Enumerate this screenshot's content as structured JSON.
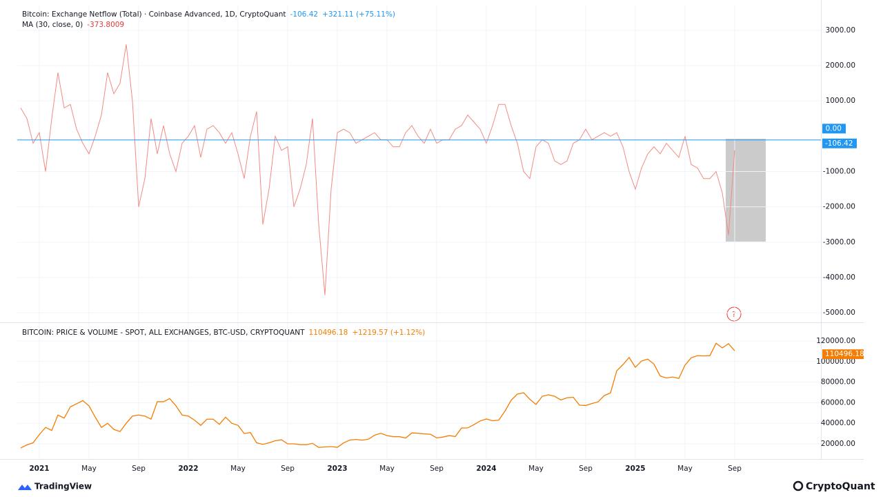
{
  "chart_data": [
    {
      "type": "line",
      "title": "Bitcoin: Exchange Netflow (Total) · Coinbase Advanced, 1D, CryptoQuant",
      "last_value": -106.42,
      "change": "+321.11 (+75.11%)",
      "series": [
        {
          "name": "MA (30, close, 0)",
          "color": "#f28b82",
          "last_value": -373.8009,
          "values": [
            800,
            500,
            -200,
            100,
            -1000,
            500,
            1800,
            800,
            900,
            200,
            -200,
            -500,
            0,
            600,
            1800,
            1200,
            1500,
            2600,
            1000,
            -2000,
            -1200,
            500,
            -500,
            300,
            -500,
            -1000,
            -200,
            0,
            300,
            -600,
            200,
            300,
            100,
            -200,
            100,
            -500,
            -1200,
            0,
            700,
            -2500,
            -1500,
            0,
            -400,
            -300,
            -2000,
            -1500,
            -800,
            500,
            -2500,
            -4500,
            -1500,
            100,
            200,
            100,
            -200,
            -100,
            0,
            100,
            -100,
            -100,
            -300,
            -300,
            100,
            300,
            0,
            -200,
            200,
            -200,
            -100,
            -100,
            200,
            300,
            600,
            400,
            200,
            -200,
            300,
            900,
            900,
            300,
            -200,
            -1000,
            -1200,
            -300,
            -100,
            -200,
            -700,
            -800,
            -700,
            -200,
            -100,
            200,
            -100,
            0,
            100,
            0,
            100,
            -300,
            -1000,
            -1500,
            -900,
            -500,
            -300,
            -500,
            -200,
            -400,
            -600,
            0,
            -800,
            -900,
            -1200,
            -1200,
            -1000,
            -1600,
            -2800,
            -400
          ]
        }
      ],
      "ylim": [
        -5270,
        3700
      ],
      "yticks": [
        {
          "value": 3000,
          "label": "3000.00"
        },
        {
          "value": 2000,
          "label": "2000.00"
        },
        {
          "value": 1000,
          "label": "1000.00"
        },
        {
          "value": -1000,
          "label": "-1000.00"
        },
        {
          "value": -2000,
          "label": "-2000.00"
        },
        {
          "value": -3000,
          "label": "-3000.00"
        },
        {
          "value": -4000,
          "label": "-4000.00"
        },
        {
          "value": -5000,
          "label": "-5000.00"
        }
      ],
      "markers": [
        {
          "value": 0,
          "label": "0.00"
        }
      ],
      "line_color": "#2196f3",
      "grid": true
    },
    {
      "type": "line",
      "title": "BITCOIN: PRICE & VOLUME - SPOT, ALL EXCHANGES, BTC-USD, CRYPTOQUANT",
      "last_value": 110496.18,
      "change": "+1219.57 (+1.12%)",
      "series": [
        {
          "color": "#f57c00",
          "values": [
            16000,
            19000,
            21000,
            29000,
            36000,
            33000,
            48000,
            45000,
            56000,
            59000,
            62000,
            57000,
            46000,
            36000,
            40000,
            34000,
            32000,
            40000,
            47000,
            48000,
            47000,
            44000,
            61000,
            61000,
            64000,
            57000,
            48000,
            47000,
            43000,
            38000,
            44000,
            44000,
            39000,
            46000,
            40000,
            38000,
            30000,
            31000,
            21000,
            19500,
            21000,
            23000,
            24000,
            20000,
            20000,
            19300,
            19200,
            20500,
            16500,
            17000,
            17300,
            16600,
            20900,
            23700,
            24300,
            23600,
            24500,
            28400,
            30300,
            28000,
            27000,
            27000,
            25600,
            30600,
            30300,
            29700,
            29300,
            25800,
            26600,
            28000,
            27100,
            35400,
            35500,
            38700,
            42200,
            44200,
            42500,
            43100,
            51800,
            62400,
            68400,
            69700,
            63400,
            58300,
            66200,
            67700,
            66200,
            62700,
            64800,
            65300,
            57600,
            57300,
            59200,
            60800,
            67000,
            69500,
            91000,
            97000,
            104000,
            94400,
            100500,
            102400,
            97500,
            86000,
            84000,
            85000,
            83600,
            96500,
            103700,
            105700,
            105500,
            105700,
            117800,
            113300,
            117400,
            110496.18
          ]
        }
      ],
      "categories": [
        null,
        null,
        null,
        "2021",
        null,
        null,
        null,
        null,
        null,
        null,
        null,
        "May",
        null,
        null,
        null,
        null,
        null,
        null,
        null,
        "Sep",
        null,
        null,
        null,
        null,
        null,
        null,
        null,
        "2022",
        null,
        null,
        null,
        null,
        null,
        null,
        null,
        "May",
        null,
        null,
        null,
        null,
        null,
        null,
        null,
        "Sep",
        null,
        null,
        null,
        null,
        null,
        null,
        null,
        "2023",
        null,
        null,
        null,
        null,
        null,
        null,
        null,
        "May",
        null,
        null,
        null,
        null,
        null,
        null,
        null,
        "Sep",
        null,
        null,
        null,
        null,
        null,
        null,
        null,
        "2024",
        null,
        null,
        null,
        null,
        null,
        null,
        null,
        "May",
        null,
        null,
        null,
        null,
        null,
        null,
        null,
        "Sep",
        null,
        null,
        null,
        null,
        null,
        null,
        null,
        "2025",
        null,
        null,
        null,
        null,
        null,
        null,
        null,
        "May",
        null,
        null,
        null,
        null,
        null,
        null,
        null,
        "Sep"
      ],
      "ylim": [
        5240,
        137450
      ],
      "yticks": [
        {
          "value": 120000,
          "label": "120000.00"
        },
        {
          "value": 100000,
          "label": "100000.00"
        },
        {
          "value": 80000,
          "label": "80000.00"
        },
        {
          "value": 60000,
          "label": "60000.00"
        },
        {
          "value": 40000,
          "label": "40000.00"
        },
        {
          "value": 20000,
          "label": "20000.00"
        }
      ],
      "grid": true
    }
  ],
  "annotation": "?",
  "footer": {
    "left": "TradingView",
    "right": "CryptoQuant"
  }
}
